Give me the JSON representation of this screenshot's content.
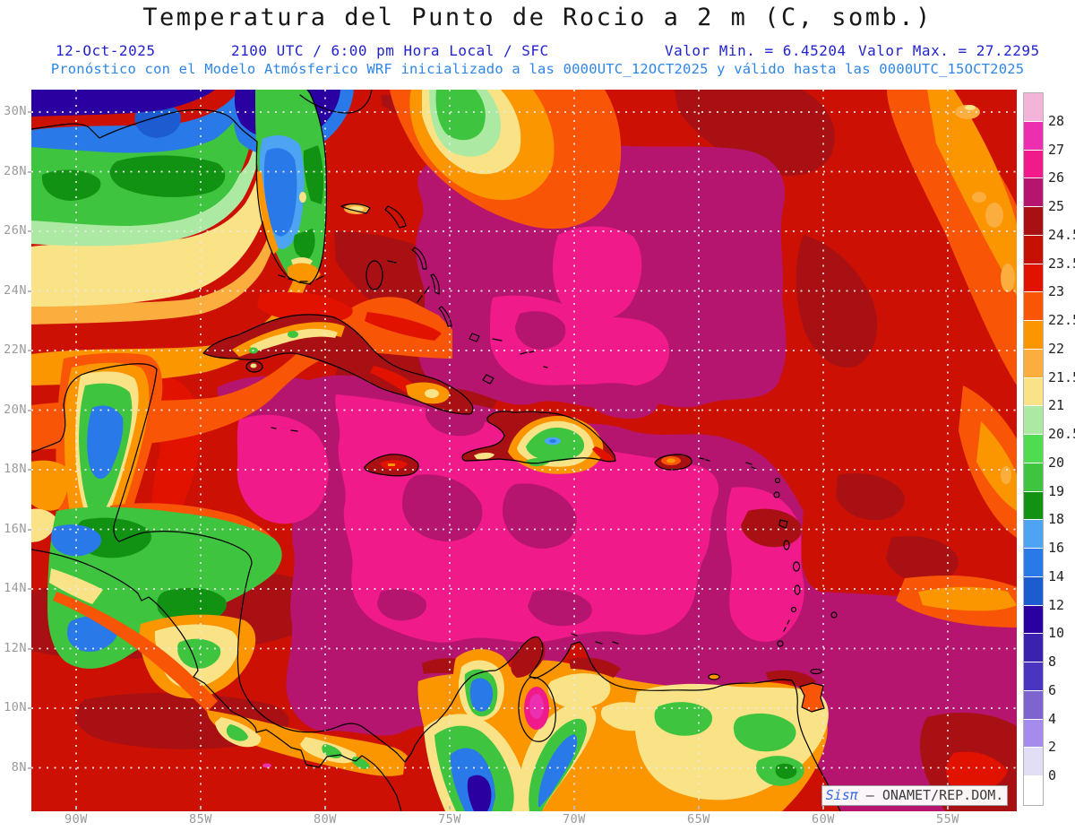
{
  "title": "Temperatura del Punto de Rocio a 2 m (C, somb.)",
  "subtitle": {
    "date": "12-Oct-2025",
    "time": "2100 UTC / 6:00 pm Hora Local / SFC",
    "min": "Valor Min. = 6.45204",
    "max": "Valor Max. = 27.2295"
  },
  "forecast_line": "Pronóstico con el Modelo Atmósferico WRF inicializado a las 0000UTC_12OCT2025 y válido hasta las  0000UTC_15OCT2025",
  "axes": {
    "lat_labels": [
      "30N",
      "28N",
      "26N",
      "24N",
      "22N",
      "20N",
      "18N",
      "16N",
      "14N",
      "12N",
      "10N",
      "8N"
    ],
    "lon_labels": [
      "90W",
      "85W",
      "80W",
      "75W",
      "70W",
      "65W",
      "60W",
      "55W"
    ]
  },
  "colorbar": {
    "tick_labels": [
      "28",
      "27",
      "26",
      "25",
      "24.5",
      "23.5",
      "23",
      "22.5",
      "22",
      "21.5",
      "21",
      "20.5",
      "20",
      "19",
      "18",
      "16",
      "14",
      "12",
      "10",
      "8",
      "6",
      "4",
      "2",
      "0"
    ],
    "segment_colors": [
      "#f4b4da",
      "#ec2fb0",
      "#f01a8a",
      "#b5156e",
      "#a81013",
      "#c41104",
      "#e21201",
      "#f85506",
      "#fb9500",
      "#fbae3e",
      "#fae387",
      "#aceaa4",
      "#50dc50",
      "#3ec43e",
      "#129212",
      "#4da4f2",
      "#2979e8",
      "#1c5cd0",
      "#2b00a0",
      "#3a22ae",
      "#4a35c0",
      "#7e64ce",
      "#a58bec",
      "#e2def6",
      "#ffffff"
    ]
  },
  "watermark": {
    "brand": "Sisπ",
    "suffix": " – ONAMET/REP.DOM."
  },
  "colors": {
    "header_blue": "#2323cd",
    "forecast_blue": "#2e86e8",
    "axis_gray": "#9a9a9a",
    "title_black": "#171717",
    "sea_base_red": "#cc1104",
    "caribbean_crimson": "#b5156e",
    "caribbean_pink": "#f01a8a"
  }
}
